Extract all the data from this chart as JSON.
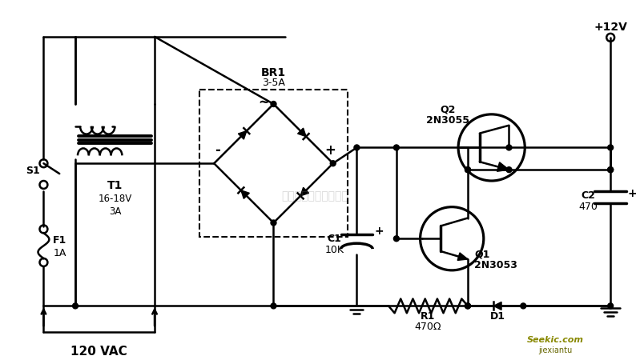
{
  "bg_color": "white",
  "line_color": "black",
  "watermark": "杭州滚睿科技有限公司",
  "labels": {
    "T1": "T1",
    "T1_spec": "16-18V\n3A",
    "S1": "S1",
    "F1": "F1",
    "F1_1A": "1A",
    "vac": "120 VAC",
    "BR1": "BR1",
    "BR1_spec": "3-5A",
    "tilde": "~",
    "minus": "-",
    "plus": "+",
    "C1": "C1",
    "C1_val": "10K",
    "Q2": "Q2",
    "Q2_val": "2N3055",
    "Q1": "Q1",
    "Q1_val": "2N3053",
    "C2": "C2",
    "C2_val": "470",
    "R1": "R1",
    "R1_val": "470Ω",
    "D1": "D1",
    "V12": "+12V"
  }
}
